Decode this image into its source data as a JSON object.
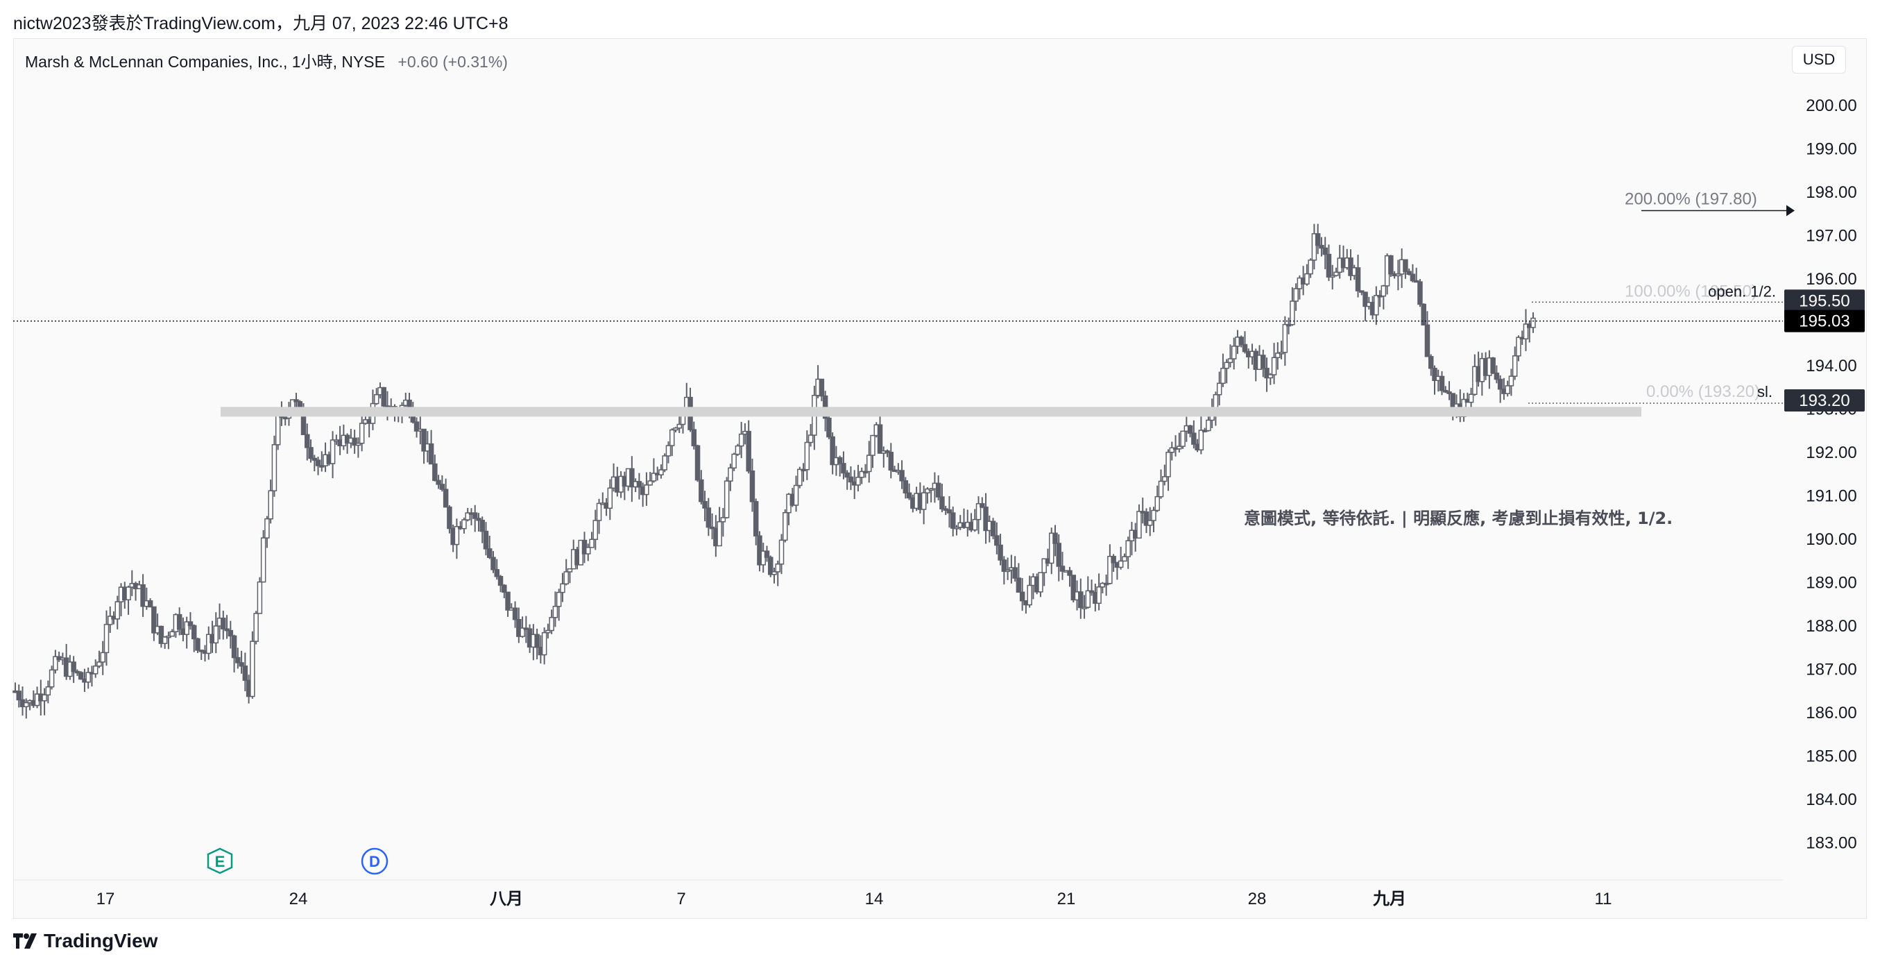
{
  "header": {
    "publisher_line": "nictw2023發表於TradingView.com，九月 07, 2023 22:46 UTC+8"
  },
  "symbol": {
    "name": "Marsh & McLennan Companies, Inc., 1小時, NYSE",
    "change": "+0.60 (+0.31%)"
  },
  "currency": "USD",
  "footer": {
    "brand": "TradingView"
  },
  "markers": {
    "earnings": "E",
    "dividend": "D"
  },
  "colors": {
    "candle_body": "#5d606b",
    "support_band": "#d4d4d4",
    "background": "#fafafa"
  },
  "chart_data": {
    "type": "candlestick",
    "title": "Marsh & McLennan Companies, Inc., 1小時, NYSE",
    "ylim": [
      182.5,
      200.5
    ],
    "y_ticks": [
      "200.00",
      "199.00",
      "198.00",
      "197.00",
      "196.00",
      "195.00",
      "194.00",
      "193.00",
      "192.00",
      "191.00",
      "190.00",
      "189.00",
      "188.00",
      "187.00",
      "186.00",
      "185.00",
      "184.00",
      "183.00"
    ],
    "x_ticks": [
      "17",
      "24",
      "八月",
      "7",
      "14",
      "21",
      "28",
      "九月",
      "11"
    ],
    "bold_x_ticks": [
      "八月",
      "九月"
    ],
    "price_labels": [
      {
        "text": "195.50",
        "value": 195.5,
        "style": "dark"
      },
      {
        "text": "195.03",
        "value": 195.03,
        "style": "black"
      },
      {
        "text": "193.20",
        "value": 193.2,
        "style": "dark"
      }
    ],
    "last_price": 195.03,
    "support_band": [
      192.88,
      193.05
    ],
    "levels": [
      {
        "label": "200.00% (197.80)",
        "value": 197.8
      },
      {
        "label": "100.00% (195.50)",
        "tag": "open. 1/2.",
        "value": 195.5
      },
      {
        "label": "0.00% (193.20)",
        "tag": "sl.",
        "value": 193.2
      }
    ],
    "annotation": "意圖模式, 等待依託. | 明顯反應, 考慮到止損有效性, 1/2.",
    "price_path": [
      186.5,
      186.2,
      186.6,
      187.2,
      186.9,
      186.7,
      187.5,
      188.7,
      189.0,
      188.5,
      187.6,
      188.2,
      187.9,
      187.4,
      188.2,
      187.3,
      186.6,
      189.8,
      192.7,
      193.3,
      192.3,
      191.5,
      192.4,
      192.1,
      192.7,
      193.3,
      192.9,
      193.2,
      192.2,
      191.2,
      190.1,
      190.8,
      190.2,
      189.0,
      188.3,
      187.7,
      187.5,
      188.7,
      189.5,
      189.8,
      190.6,
      191.2,
      191.4,
      191.0,
      191.5,
      192.6,
      193.1,
      190.8,
      189.9,
      191.5,
      192.5,
      189.6,
      189.3,
      190.8,
      191.6,
      193.6,
      191.9,
      191.4,
      191.5,
      192.4,
      191.7,
      191.2,
      190.7,
      191.2,
      190.6,
      190.2,
      190.7,
      190.1,
      189.3,
      188.6,
      189.0,
      189.9,
      189.1,
      188.5,
      188.7,
      189.4,
      189.7,
      190.4,
      190.6,
      191.8,
      192.5,
      192.3,
      193.1,
      194.0,
      194.7,
      194.1,
      193.8,
      194.8,
      195.9,
      196.8,
      196.2,
      196.5,
      195.9,
      195.3,
      196.3,
      196.2,
      195.7,
      193.9,
      193.4,
      192.9,
      193.8,
      194.1,
      193.4,
      194.5,
      195.1
    ]
  }
}
